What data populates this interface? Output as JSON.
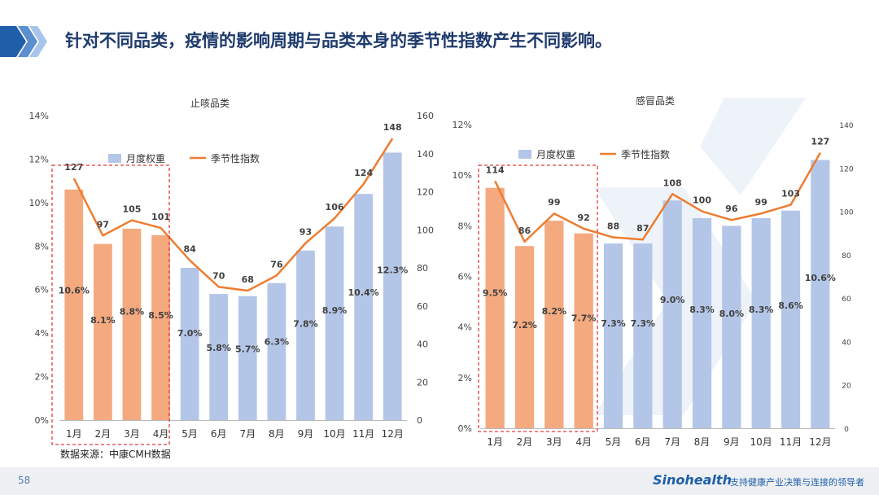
{
  "header": {
    "title": "针对不同品类，疫情的影响周期与品类本身的季节性指数产生不同影响。",
    "accent_color": "#1f5faa"
  },
  "footer": {
    "page_number": "58",
    "brand": "Sinohealth",
    "tagline": "支持健康产业决策与连接的领导者"
  },
  "source_note": "数据来源：中康CMH数据",
  "chart_data": [
    {
      "type": "bar+line",
      "title": "止咳品类",
      "categories": [
        "1月",
        "2月",
        "3月",
        "4月",
        "5月",
        "6月",
        "7月",
        "8月",
        "9月",
        "10月",
        "11月",
        "12月"
      ],
      "series": [
        {
          "name": "月度权重",
          "type": "bar",
          "axis": "left",
          "values": [
            10.6,
            8.1,
            8.8,
            8.5,
            7.0,
            5.8,
            5.7,
            6.3,
            7.8,
            8.9,
            10.4,
            12.3
          ],
          "labels": [
            "10.6%",
            "8.1%",
            "8.8%",
            "8.5%",
            "7.0%",
            "5.8%",
            "5.7%",
            "6.3%",
            "7.8%",
            "8.9%",
            "10.4%",
            "12.3%"
          ]
        },
        {
          "name": "季节性指数",
          "type": "line",
          "axis": "right",
          "values": [
            127,
            97,
            105,
            101,
            84,
            70,
            68,
            76,
            93,
            106,
            124,
            148
          ]
        }
      ],
      "highlight_months": 4,
      "y_left": {
        "min": 0,
        "max": 14,
        "step": 2,
        "ticks": [
          "0%",
          "2%",
          "4%",
          "6%",
          "8%",
          "10%",
          "12%",
          "14%"
        ]
      },
      "y_right": {
        "min": 0,
        "max": 160,
        "step": 20,
        "ticks": [
          "0",
          "20",
          "40",
          "60",
          "80",
          "100",
          "120",
          "140",
          "160"
        ]
      },
      "colors": {
        "highlight": "#f4a97f",
        "bar": "#b4c6e7",
        "line": "#ed7d31",
        "box": "#e03c3c"
      }
    },
    {
      "type": "bar+line",
      "title": "感冒品类",
      "categories": [
        "1月",
        "2月",
        "3月",
        "4月",
        "5月",
        "6月",
        "7月",
        "8月",
        "9月",
        "10月",
        "11月",
        "12月"
      ],
      "series": [
        {
          "name": "月度权重",
          "type": "bar",
          "axis": "left",
          "values": [
            9.5,
            7.2,
            8.2,
            7.7,
            7.3,
            7.3,
            9.0,
            8.3,
            8.0,
            8.3,
            8.6,
            10.6
          ],
          "labels": [
            "9.5%",
            "7.2%",
            "8.2%",
            "7.7%",
            "7.3%",
            "7.3%",
            "9.0%",
            "8.3%",
            "8.0%",
            "8.3%",
            "8.6%",
            "10.6%"
          ]
        },
        {
          "name": "季节性指数",
          "type": "line",
          "axis": "right",
          "values": [
            114,
            86,
            99,
            92,
            88,
            87,
            108,
            100,
            96,
            99,
            103,
            127
          ]
        }
      ],
      "highlight_months": 4,
      "y_left": {
        "min": 0,
        "max": 12,
        "step": 2,
        "ticks": [
          "0%",
          "2%",
          "4%",
          "6%",
          "8%",
          "10%",
          "12%"
        ]
      },
      "y_right": {
        "min": 0,
        "max": 140,
        "step": 20,
        "ticks": [
          "0",
          "20",
          "40",
          "60",
          "80",
          "100",
          "120",
          "140"
        ]
      },
      "colors": {
        "highlight": "#f4a97f",
        "bar": "#b4c6e7",
        "line": "#ed7d31",
        "box": "#e03c3c"
      }
    }
  ]
}
